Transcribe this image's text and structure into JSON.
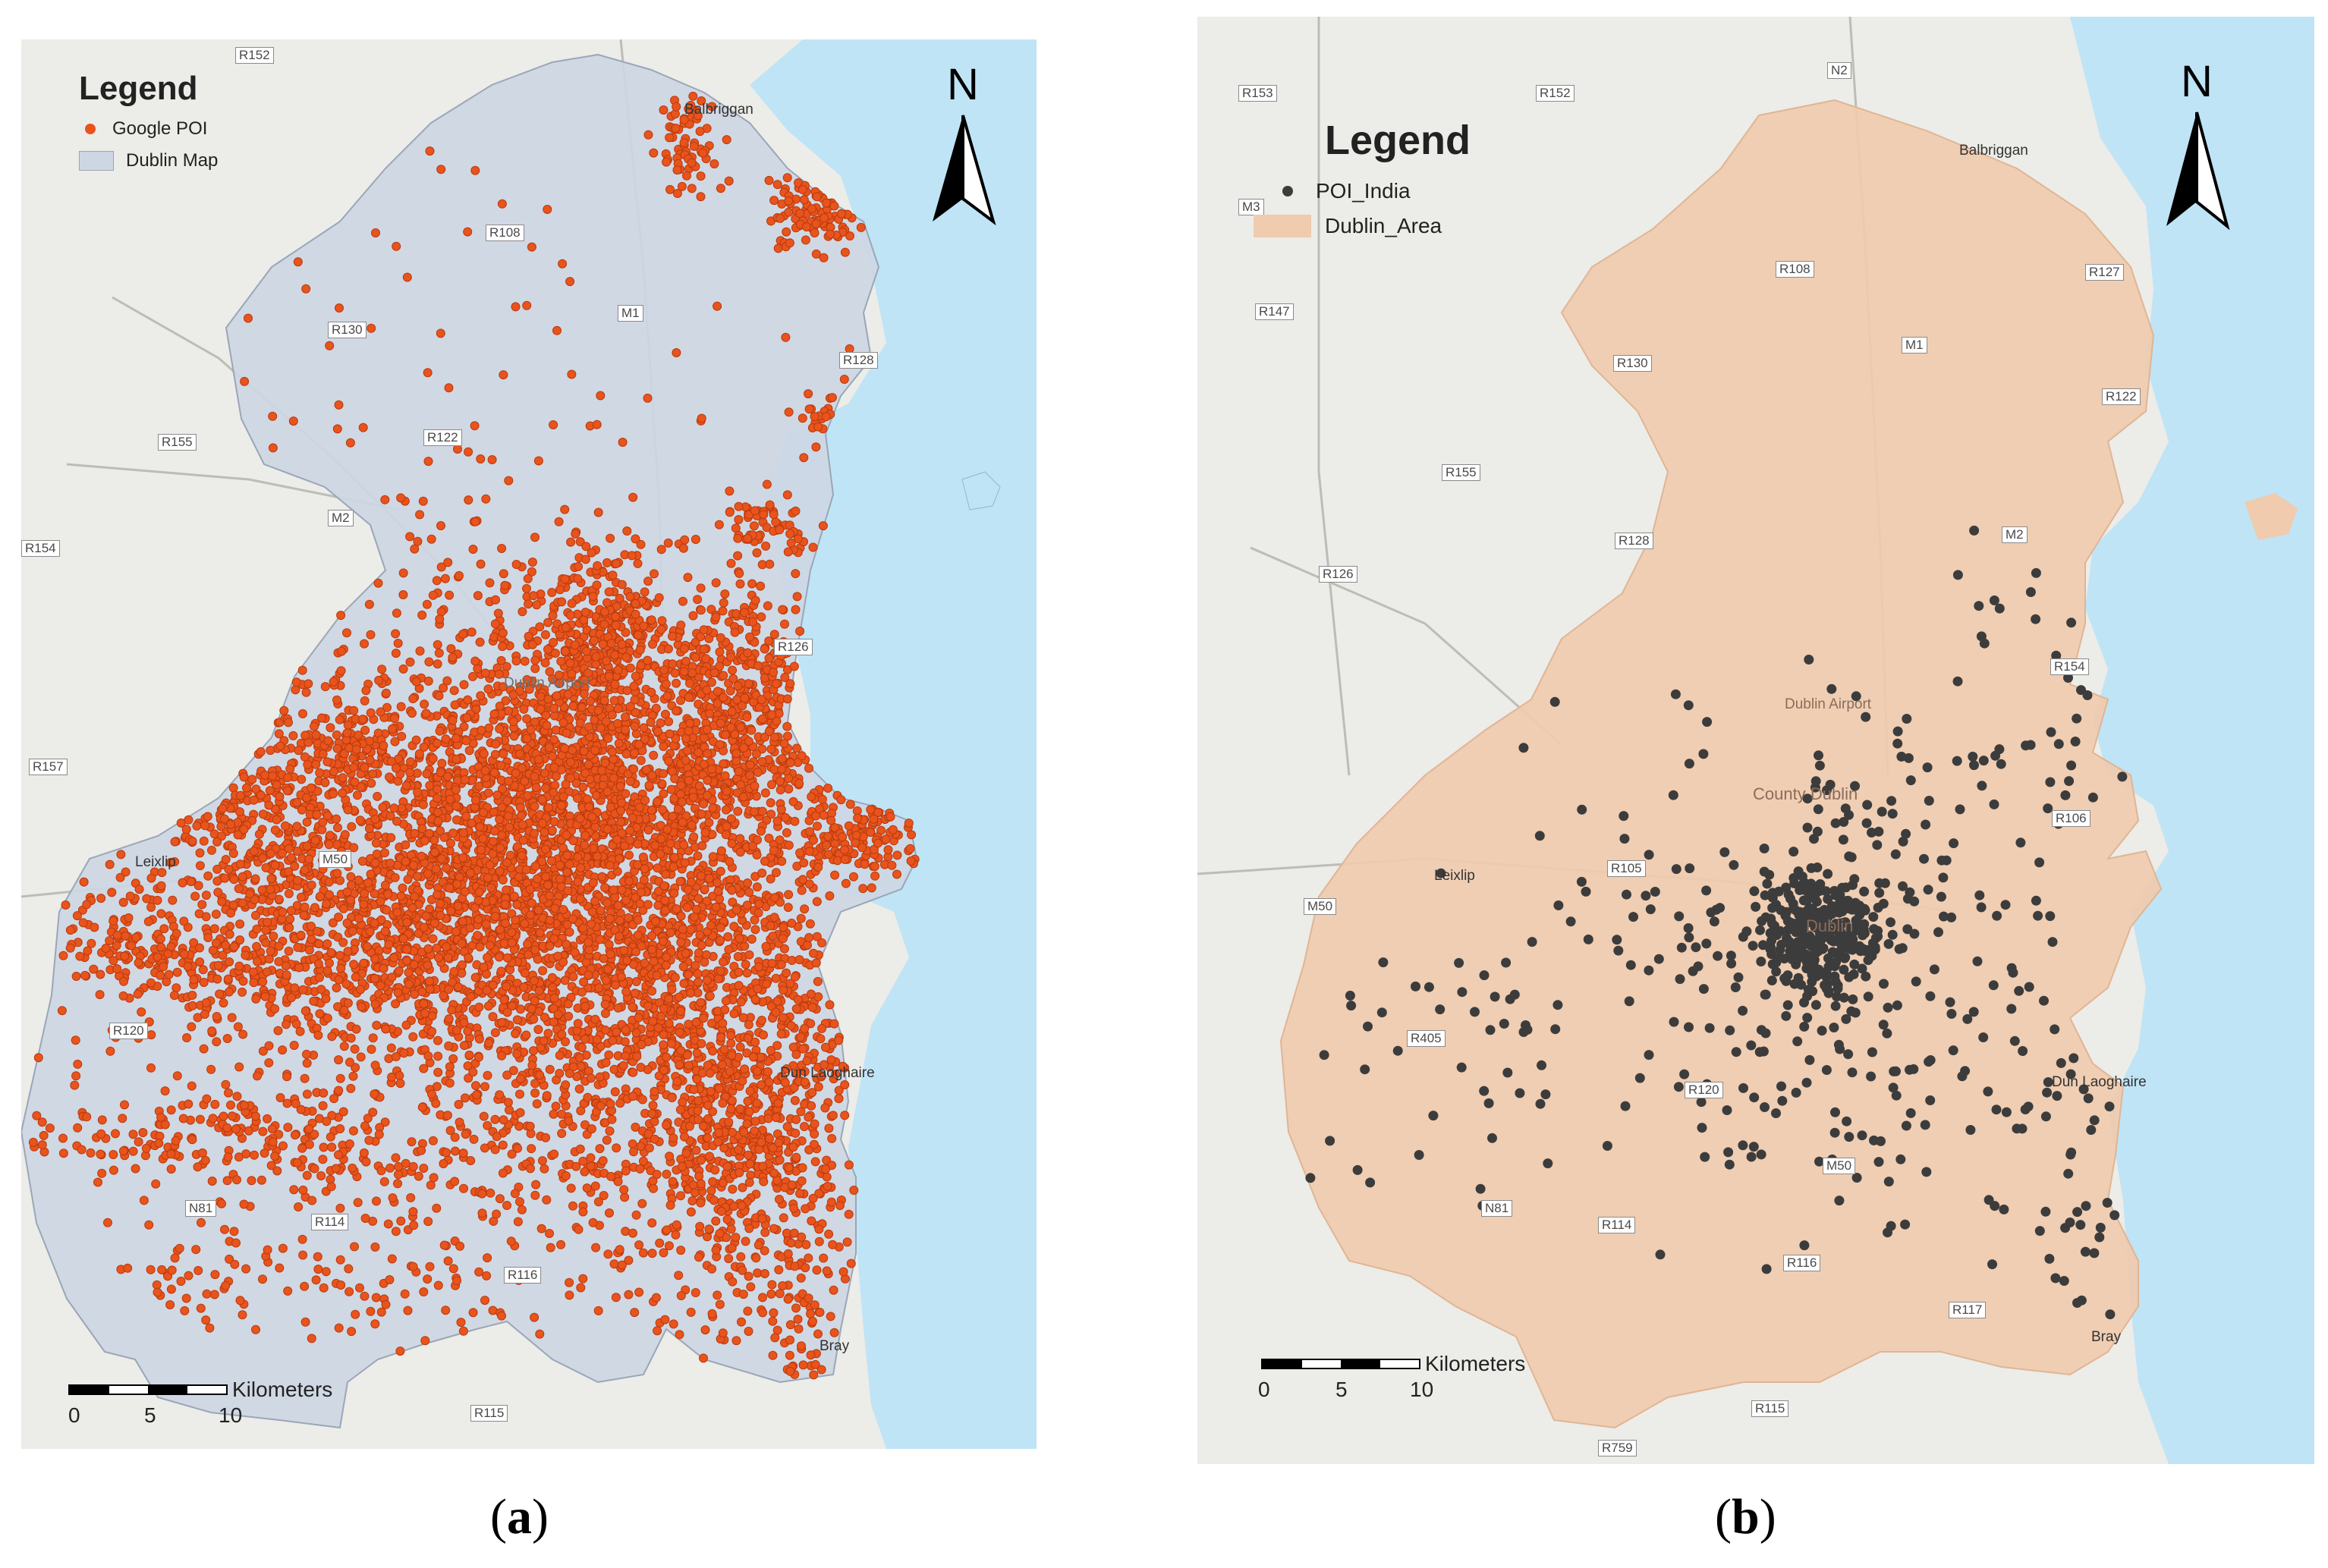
{
  "panel_a": {
    "legend": {
      "title": "Legend",
      "point_label": "Google POI",
      "area_label": "Dublin Map"
    },
    "north": "N",
    "scale": {
      "unit": "Kilometers",
      "ticks": [
        "0",
        "5",
        "10"
      ]
    },
    "caption_label": "a",
    "colors": {
      "area": "#cdd6e3",
      "point": "#e8541c",
      "water": "#bfe4f6"
    },
    "roads": [
      "R152",
      "R108",
      "M1",
      "R130",
      "R128",
      "R155",
      "R122",
      "M2",
      "R154",
      "R157",
      "M50",
      "R120",
      "R114",
      "N81",
      "R116",
      "R115",
      "R126"
    ],
    "places": [
      "Balbriggan",
      "Dublin Airport",
      "Leixlip",
      "Dun Laoghaire",
      "Bray"
    ]
  },
  "panel_b": {
    "legend": {
      "title": "Legend",
      "point_label": "POI_India",
      "area_label": "Dublin_Area"
    },
    "north": "N",
    "scale": {
      "unit": "Kilometers",
      "ticks": [
        "0",
        "5",
        "10"
      ]
    },
    "caption_label": "b",
    "colors": {
      "area": "#f0cbae",
      "point": "#3c3c3c",
      "water": "#bfe4f6"
    },
    "roads": [
      "N2",
      "R153",
      "R152",
      "M3",
      "R147",
      "R108",
      "R127",
      "M1",
      "R130",
      "R155",
      "R122",
      "R128",
      "M2",
      "R126",
      "R154",
      "R106",
      "R105",
      "M50",
      "R405",
      "R120",
      "M50",
      "N81",
      "R114",
      "R116",
      "R117",
      "R115",
      "R759"
    ],
    "places": [
      "Balbriggan",
      "Dublin Airport",
      "County Dublin",
      "Dublin",
      "Leixlip",
      "Dun Laoghaire",
      "Bray"
    ]
  }
}
